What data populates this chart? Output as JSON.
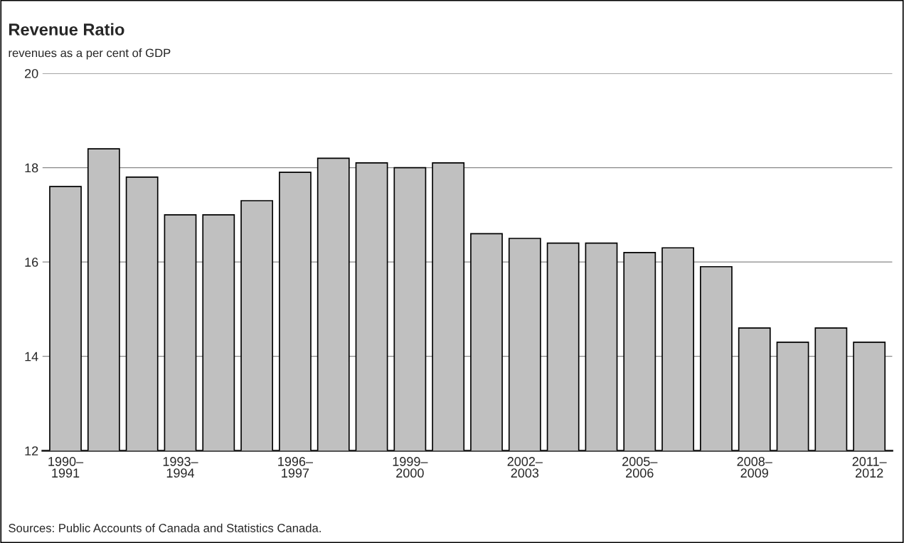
{
  "chart_data": {
    "type": "bar",
    "title": "Revenue Ratio",
    "subtitle": "revenues as a per cent of GDP",
    "categories": [
      "1990–\n1991",
      null,
      null,
      "1993–\n1994",
      null,
      null,
      "1996–\n1997",
      null,
      null,
      "1999–\n2000",
      null,
      null,
      "2002–\n2003",
      null,
      null,
      "2005–\n2006",
      null,
      null,
      "2008–\n2009",
      null,
      null,
      "2011–\n2012"
    ],
    "values": [
      17.6,
      18.4,
      17.8,
      17.0,
      17.0,
      17.3,
      17.9,
      18.2,
      18.1,
      18.0,
      18.1,
      16.6,
      16.5,
      16.4,
      16.4,
      16.2,
      16.3,
      15.9,
      14.6,
      14.3,
      14.6,
      14.3
    ],
    "color": "#c0c0c0",
    "ylim": [
      12,
      20
    ],
    "yticks": [
      12,
      14,
      16,
      18,
      20
    ],
    "grid": "y",
    "annotations": [
      "Sources: Public Accounts of Canada and Statistics Canada."
    ]
  }
}
